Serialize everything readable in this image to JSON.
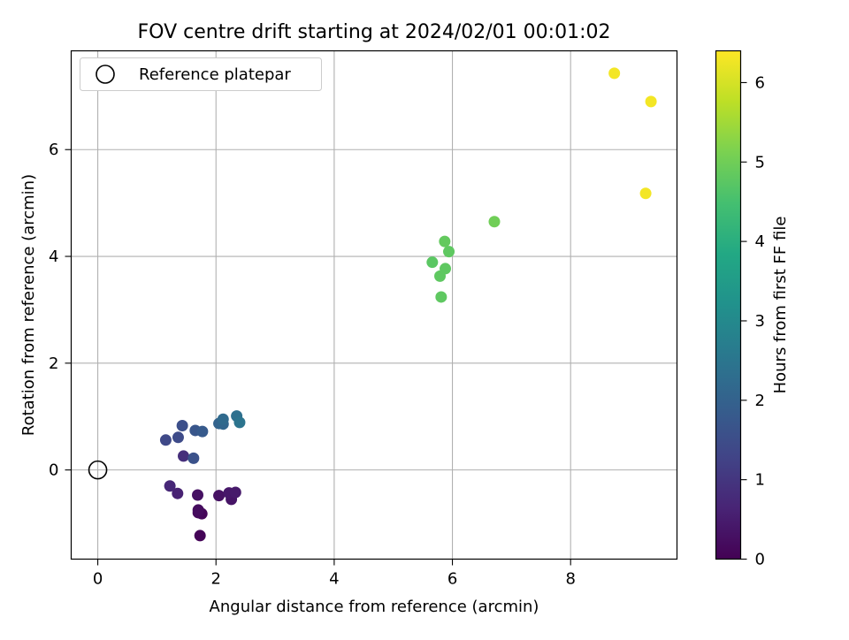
{
  "chart_data": {
    "type": "scatter",
    "title": "FOV centre drift starting at 2024/02/01 00:01:02",
    "xlabel": "Angular distance from reference (arcmin)",
    "ylabel": "Rotation from reference (arcmin)",
    "xlim": [
      -0.45,
      9.8
    ],
    "ylim": [
      -1.67,
      7.85
    ],
    "xticks": [
      0,
      2,
      4,
      6,
      8
    ],
    "yticks": [
      0,
      2,
      4,
      6
    ],
    "grid": true,
    "legend": {
      "placement": "top-left",
      "entries": [
        "Reference platepar"
      ]
    },
    "reference_point": {
      "x": 0,
      "y": 0,
      "marker": "open-circle"
    },
    "colorbar": {
      "label": "Hours from first FF file",
      "colormap": "viridis",
      "range": [
        0,
        6.4
      ],
      "ticks": [
        0,
        1,
        2,
        3,
        4,
        5,
        6
      ]
    },
    "points": [
      {
        "x": 1.73,
        "y": -1.23,
        "t": 0.05
      },
      {
        "x": 1.76,
        "y": -0.82,
        "t": 0.1
      },
      {
        "x": 1.7,
        "y": -0.8,
        "t": 0.15
      },
      {
        "x": 1.7,
        "y": -0.75,
        "t": 0.2
      },
      {
        "x": 1.69,
        "y": -0.47,
        "t": 0.3
      },
      {
        "x": 2.05,
        "y": -0.48,
        "t": 0.3
      },
      {
        "x": 2.26,
        "y": -0.55,
        "t": 0.35
      },
      {
        "x": 2.22,
        "y": -0.43,
        "t": 0.4
      },
      {
        "x": 2.33,
        "y": -0.42,
        "t": 0.45
      },
      {
        "x": 1.35,
        "y": -0.44,
        "t": 0.6
      },
      {
        "x": 1.22,
        "y": -0.3,
        "t": 0.7
      },
      {
        "x": 1.45,
        "y": 0.26,
        "t": 0.85
      },
      {
        "x": 1.15,
        "y": 0.56,
        "t": 1.4
      },
      {
        "x": 1.36,
        "y": 0.61,
        "t": 1.45
      },
      {
        "x": 1.43,
        "y": 0.83,
        "t": 1.55
      },
      {
        "x": 1.62,
        "y": 0.22,
        "t": 1.6
      },
      {
        "x": 1.65,
        "y": 0.74,
        "t": 1.7
      },
      {
        "x": 1.77,
        "y": 0.72,
        "t": 1.8
      },
      {
        "x": 2.05,
        "y": 0.87,
        "t": 2.05
      },
      {
        "x": 2.12,
        "y": 0.86,
        "t": 2.1
      },
      {
        "x": 2.12,
        "y": 0.95,
        "t": 2.2
      },
      {
        "x": 2.35,
        "y": 1.01,
        "t": 2.35
      },
      {
        "x": 2.4,
        "y": 0.89,
        "t": 2.45
      },
      {
        "x": 5.66,
        "y": 3.89,
        "t": 4.75
      },
      {
        "x": 5.81,
        "y": 3.24,
        "t": 4.8
      },
      {
        "x": 5.79,
        "y": 3.63,
        "t": 4.8
      },
      {
        "x": 5.88,
        "y": 3.77,
        "t": 4.8
      },
      {
        "x": 5.94,
        "y": 4.09,
        "t": 4.8
      },
      {
        "x": 5.87,
        "y": 4.28,
        "t": 4.85
      },
      {
        "x": 6.71,
        "y": 4.65,
        "t": 5.0
      },
      {
        "x": 8.74,
        "y": 7.43,
        "t": 6.3
      },
      {
        "x": 9.27,
        "y": 5.18,
        "t": 6.3
      },
      {
        "x": 9.36,
        "y": 6.9,
        "t": 6.3
      }
    ]
  }
}
